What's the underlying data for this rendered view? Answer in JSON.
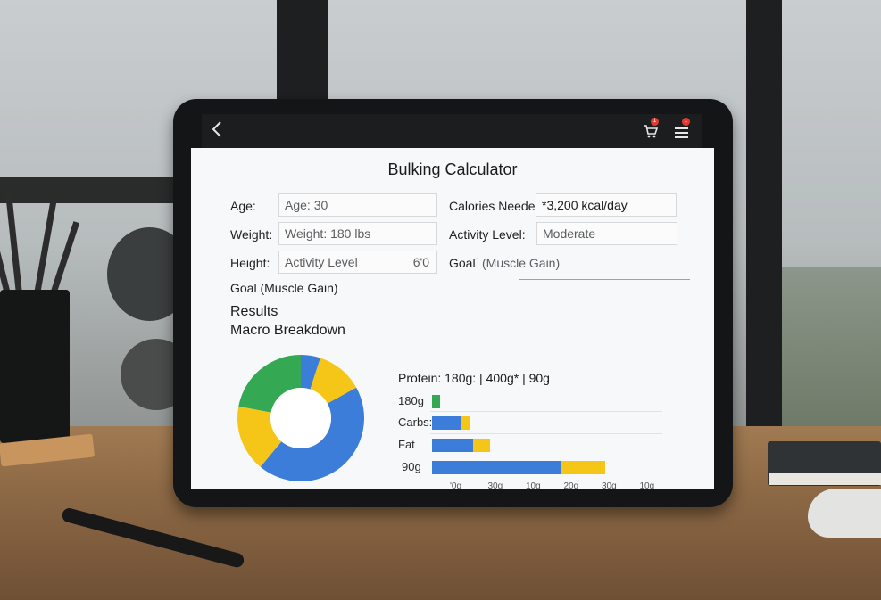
{
  "app": {
    "title": "Bulking Calculator"
  },
  "topbar": {
    "back_icon": "chevron-left-icon",
    "cart_icon": "cart-icon",
    "cart_badge": "1",
    "menu_icon": "menu-icon",
    "menu_badge": "1"
  },
  "form": {
    "age_label": "Age:",
    "age_value": "Age: 30",
    "weight_label": "Weight:",
    "weight_value": "Weight: 180 lbs",
    "height_label": "Height:",
    "height_field_text": "Activity Level",
    "height_value": "6'0",
    "goal_label": "Goal (Muscle Gain)",
    "calories_label": "Calories Needed:",
    "calories_value": "*3,200 kcal/day",
    "activity_label": "Activity Level:",
    "activity_value": "Moderate",
    "goal_right_label": "Goal˙",
    "goal_right_value": "(Muscle Gain)"
  },
  "results": {
    "heading": "Results",
    "subheading": "Macro Breakdown",
    "protein_line": "Protein: 180g: | 400g* | 90g"
  },
  "chart_data": [
    {
      "type": "pie",
      "variant": "donut",
      "colors": {
        "green": "#34a853",
        "blue": "#3b7dd8",
        "yellow": "#f5c518"
      },
      "slices": [
        {
          "color": "blue",
          "value": 5
        },
        {
          "color": "yellow",
          "value": 12
        },
        {
          "color": "blue",
          "value": 44
        },
        {
          "color": "yellow",
          "value": 17
        },
        {
          "color": "green",
          "value": 22
        }
      ]
    },
    {
      "type": "bar",
      "orientation": "horizontal",
      "stacked": true,
      "categories": [
        "180g",
        "Carbs:",
        "Fat",
        "90g"
      ],
      "series": [
        {
          "color": "mixed",
          "values": [
            9,
            33,
            46,
            145
          ]
        },
        {
          "color": "#f5c518",
          "values": [
            0,
            9,
            19,
            49
          ]
        }
      ],
      "first_series_colors": [
        "#34a853",
        "#3b7dd8",
        "#3b7dd8",
        "#3b7dd8"
      ],
      "xlim": [
        0,
        260
      ],
      "tick_labels": [
        "'0g",
        "30g",
        "10g",
        "20g",
        "30g",
        "10g"
      ]
    }
  ]
}
